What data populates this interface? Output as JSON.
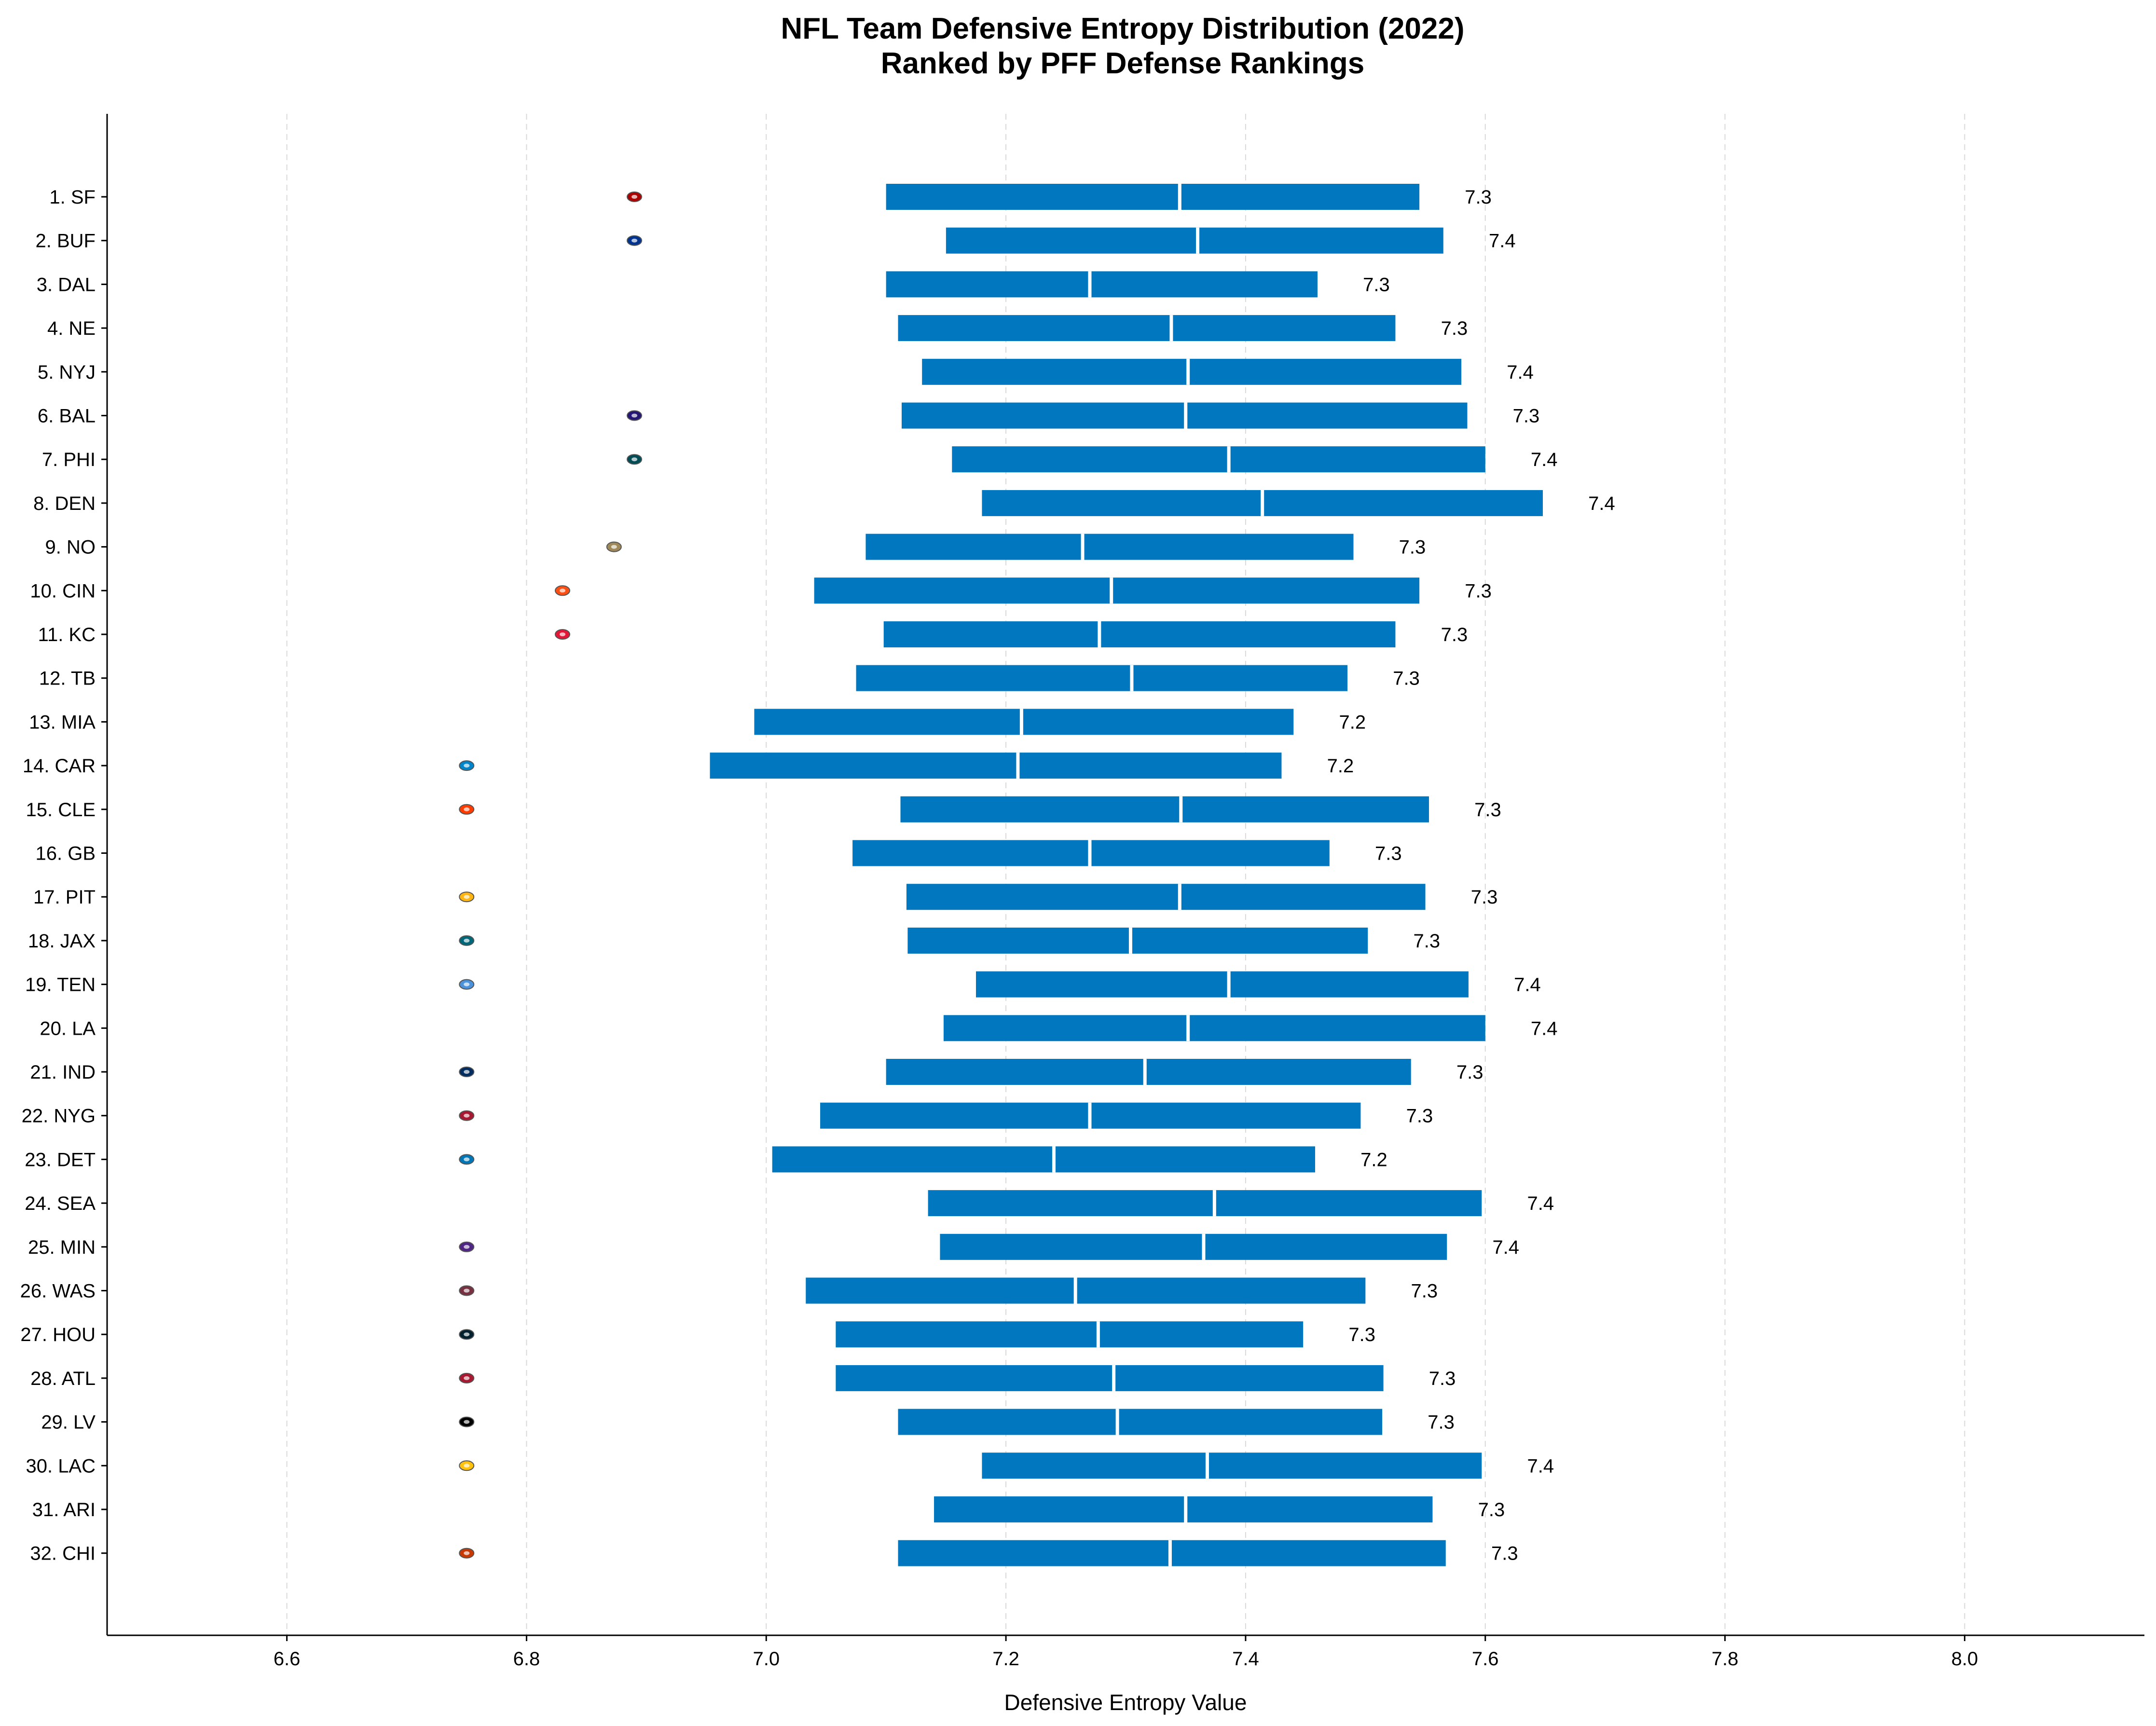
{
  "chart_data": {
    "type": "bar",
    "title": "NFL Team Defensive Entropy Distribution (2022)",
    "subtitle": "Ranked by PFF Defense Rankings",
    "xlabel": "Defensive Entropy Value",
    "ylabel": "",
    "xlim": [
      6.45,
      8.15
    ],
    "xticks": [
      "6.6",
      "6.8",
      "7.0",
      "7.2",
      "7.4",
      "7.6",
      "7.8",
      "8.0"
    ],
    "grid": "vertical dashed",
    "bar_color": "#0077BE",
    "categories": [
      "1. SF",
      "2. BUF",
      "3. DAL",
      "4. NE",
      "5. NYJ",
      "6. BAL",
      "7. PHI",
      "8. DEN",
      "9. NO",
      "10. CIN",
      "11. KC",
      "12. TB",
      "13. MIA",
      "14. CAR",
      "15. CLE",
      "16. GB",
      "17. PIT",
      "18. JAX",
      "19. TEN",
      "20. LA",
      "21. IND",
      "22. NYG",
      "23. DET",
      "24. SEA",
      "25. MIN",
      "26. WAS",
      "27. HOU",
      "28. ATL",
      "29. LV",
      "30. LAC",
      "31. ARI",
      "32. CHI"
    ],
    "ranges": [
      {
        "low": 7.1,
        "median": 7.345,
        "high": 7.545,
        "label": "7.3"
      },
      {
        "low": 7.15,
        "median": 7.36,
        "high": 7.565,
        "label": "7.4"
      },
      {
        "low": 7.1,
        "median": 7.27,
        "high": 7.46,
        "label": "7.3"
      },
      {
        "low": 7.11,
        "median": 7.338,
        "high": 7.525,
        "label": "7.3"
      },
      {
        "low": 7.13,
        "median": 7.352,
        "high": 7.58,
        "label": "7.4"
      },
      {
        "low": 7.113,
        "median": 7.35,
        "high": 7.585,
        "label": "7.3"
      },
      {
        "low": 7.155,
        "median": 7.386,
        "high": 7.6,
        "label": "7.4"
      },
      {
        "low": 7.18,
        "median": 7.414,
        "high": 7.648,
        "label": "7.4"
      },
      {
        "low": 7.083,
        "median": 7.264,
        "high": 7.49,
        "label": "7.3"
      },
      {
        "low": 7.04,
        "median": 7.288,
        "high": 7.545,
        "label": "7.3"
      },
      {
        "low": 7.098,
        "median": 7.278,
        "high": 7.525,
        "label": "7.3"
      },
      {
        "low": 7.075,
        "median": 7.305,
        "high": 7.485,
        "label": "7.3"
      },
      {
        "low": 6.99,
        "median": 7.213,
        "high": 7.44,
        "label": "7.2"
      },
      {
        "low": 6.953,
        "median": 7.21,
        "high": 7.43,
        "label": "7.2"
      },
      {
        "low": 7.112,
        "median": 7.346,
        "high": 7.553,
        "label": "7.3"
      },
      {
        "low": 7.072,
        "median": 7.27,
        "high": 7.47,
        "label": "7.3"
      },
      {
        "low": 7.117,
        "median": 7.345,
        "high": 7.55,
        "label": "7.3"
      },
      {
        "low": 7.118,
        "median": 7.304,
        "high": 7.502,
        "label": "7.3"
      },
      {
        "low": 7.175,
        "median": 7.386,
        "high": 7.586,
        "label": "7.4"
      },
      {
        "low": 7.148,
        "median": 7.352,
        "high": 7.6,
        "label": "7.4"
      },
      {
        "low": 7.1,
        "median": 7.316,
        "high": 7.538,
        "label": "7.3"
      },
      {
        "low": 7.045,
        "median": 7.27,
        "high": 7.496,
        "label": "7.3"
      },
      {
        "low": 7.005,
        "median": 7.24,
        "high": 7.458,
        "label": "7.2"
      },
      {
        "low": 7.135,
        "median": 7.374,
        "high": 7.597,
        "label": "7.4"
      },
      {
        "low": 7.145,
        "median": 7.365,
        "high": 7.568,
        "label": "7.4"
      },
      {
        "low": 7.033,
        "median": 7.258,
        "high": 7.5,
        "label": "7.3"
      },
      {
        "low": 7.058,
        "median": 7.277,
        "high": 7.448,
        "label": "7.3"
      },
      {
        "low": 7.058,
        "median": 7.29,
        "high": 7.515,
        "label": "7.3"
      },
      {
        "low": 7.11,
        "median": 7.293,
        "high": 7.514,
        "label": "7.3"
      },
      {
        "low": 7.18,
        "median": 7.368,
        "high": 7.597,
        "label": "7.4"
      },
      {
        "low": 7.14,
        "median": 7.35,
        "high": 7.556,
        "label": "7.3"
      },
      {
        "low": 7.11,
        "median": 7.337,
        "high": 7.567,
        "label": "7.3"
      }
    ],
    "logos": [
      {
        "team": "SF",
        "icon": "sf-49ers-logo-icon",
        "x": 6.89,
        "color": "#AA0000"
      },
      {
        "team": "BUF",
        "icon": "bills-logo-icon",
        "x": 6.89,
        "color": "#00338D"
      },
      {
        "team": "DAL",
        "icon": "none",
        "x": null,
        "color": ""
      },
      {
        "team": "NE",
        "icon": "none",
        "x": null,
        "color": ""
      },
      {
        "team": "NYJ",
        "icon": "none",
        "x": null,
        "color": ""
      },
      {
        "team": "BAL",
        "icon": "ravens-logo-icon",
        "x": 6.89,
        "color": "#241773"
      },
      {
        "team": "PHI",
        "icon": "eagles-logo-icon",
        "x": 6.89,
        "color": "#004C54"
      },
      {
        "team": "DEN",
        "icon": "none",
        "x": null,
        "color": ""
      },
      {
        "team": "NO",
        "icon": "saints-logo-icon",
        "x": 6.873,
        "color": "#9F8958"
      },
      {
        "team": "CIN",
        "icon": "bengals-logo-icon",
        "x": 6.83,
        "color": "#FB4F14"
      },
      {
        "team": "KC",
        "icon": "chiefs-logo-icon",
        "x": 6.83,
        "color": "#E31837"
      },
      {
        "team": "TB",
        "icon": "none",
        "x": null,
        "color": ""
      },
      {
        "team": "MIA",
        "icon": "none",
        "x": null,
        "color": ""
      },
      {
        "team": "CAR",
        "icon": "panthers-logo-icon",
        "x": 6.75,
        "color": "#0085CA"
      },
      {
        "team": "CLE",
        "icon": "browns-logo-icon",
        "x": 6.75,
        "color": "#FF3C00"
      },
      {
        "team": "GB",
        "icon": "none",
        "x": null,
        "color": ""
      },
      {
        "team": "PIT",
        "icon": "steelers-logo-icon",
        "x": 6.75,
        "color": "#FFB612"
      },
      {
        "team": "JAX",
        "icon": "jaguars-logo-icon",
        "x": 6.75,
        "color": "#006778"
      },
      {
        "team": "TEN",
        "icon": "titans-logo-icon",
        "x": 6.75,
        "color": "#4B92DB"
      },
      {
        "team": "LA",
        "icon": "none",
        "x": null,
        "color": ""
      },
      {
        "team": "IND",
        "icon": "colts-logo-icon",
        "x": 6.75,
        "color": "#002C5F"
      },
      {
        "team": "NYG",
        "icon": "giants-logo-icon",
        "x": 6.75,
        "color": "#A71930"
      },
      {
        "team": "DET",
        "icon": "lions-logo-icon",
        "x": 6.75,
        "color": "#0076B6"
      },
      {
        "team": "SEA",
        "icon": "none",
        "x": null,
        "color": ""
      },
      {
        "team": "MIN",
        "icon": "vikings-logo-icon",
        "x": 6.75,
        "color": "#4F2683"
      },
      {
        "team": "WAS",
        "icon": "commanders-logo-icon",
        "x": 6.75,
        "color": "#773141"
      },
      {
        "team": "HOU",
        "icon": "texans-logo-icon",
        "x": 6.75,
        "color": "#03202F"
      },
      {
        "team": "ATL",
        "icon": "falcons-logo-icon",
        "x": 6.75,
        "color": "#A71930"
      },
      {
        "team": "LV",
        "icon": "raiders-logo-icon",
        "x": 6.75,
        "color": "#000000"
      },
      {
        "team": "LAC",
        "icon": "chargers-logo-icon",
        "x": 6.75,
        "color": "#FFC20E"
      },
      {
        "team": "ARI",
        "icon": "none",
        "x": null,
        "color": ""
      },
      {
        "team": "CHI",
        "icon": "bears-logo-icon",
        "x": 6.75,
        "color": "#C83803"
      }
    ]
  }
}
